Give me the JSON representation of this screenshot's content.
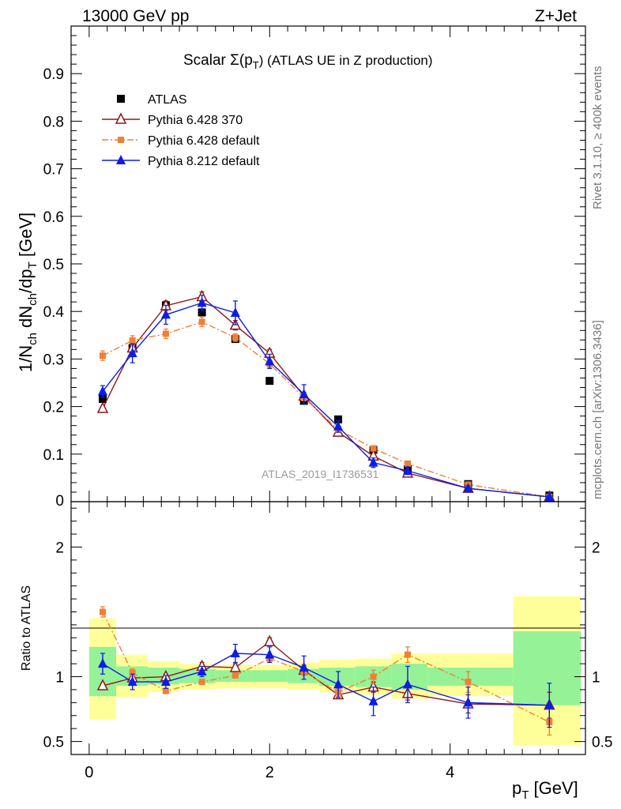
{
  "header": {
    "energy_label": "13000 GeV pp",
    "process_label": "Z+Jet",
    "plot_title_prefix": "Scalar Σ(p",
    "plot_title_sub": "T",
    "plot_title_suffix": ") (ATLAS UE in Z production)"
  },
  "side_labels": {
    "rivet": "Rivet 3.1.10, ≥ 400k events",
    "mcplots": "mcplots.cern.ch [arXiv:1306.3436]"
  },
  "watermark": "ATLAS_2019_I1736531",
  "axis_labels": {
    "y_main": "1/N_ch dN_ch/dp_T [GeV]",
    "y_ratio": "Ratio to ATLAS",
    "x": "p_T [GeV]"
  },
  "colors": {
    "atlas": "#000000",
    "py6_370": "#8b1a1a",
    "py6_default": "#f07f35",
    "py8": "#0a1ee6",
    "band_inner": "#96f296",
    "band_outer": "#ffff99"
  },
  "chart_data": {
    "type": "scatter",
    "title": "Scalar Σ(p_T) (ATLAS UE in Z production)",
    "xlabel": "p_T [GeV]",
    "ylabel": "1/N_ch dN_ch/dp_T [GeV]",
    "xlim": [
      -0.2,
      5.5
    ],
    "ylim": [
      0,
      1.0
    ],
    "main_y_ticks": [
      "0.1",
      "0.2",
      "0.3",
      "0.4",
      "0.5",
      "0.6",
      "0.7",
      "0.8",
      "0.9"
    ],
    "x_ticks": [
      "0",
      "2",
      "4"
    ],
    "ratio_ylim": [
      0.4,
      2.35
    ],
    "ratio_y_ticks": [
      "0.5",
      "1",
      "2"
    ],
    "legend_position": "top-left",
    "bins": [
      [
        0.0,
        0.3
      ],
      [
        0.3,
        0.65
      ],
      [
        0.65,
        1.0
      ],
      [
        1.0,
        1.4
      ],
      [
        1.4,
        1.8
      ],
      [
        1.8,
        2.2
      ],
      [
        2.2,
        2.55
      ],
      [
        2.55,
        2.95
      ],
      [
        2.95,
        3.35
      ],
      [
        3.35,
        3.75
      ],
      [
        3.75,
        4.7
      ],
      [
        4.7,
        5.45
      ]
    ],
    "x": [
      0.15,
      0.48,
      0.85,
      1.25,
      1.62,
      2.0,
      2.38,
      2.76,
      3.15,
      3.53,
      4.2,
      5.1
    ],
    "atlas": {
      "name": "ATLAS",
      "values": [
        0.216,
        0.323,
        0.413,
        0.398,
        0.342,
        0.254,
        0.212,
        0.173,
        0.109,
        0.068,
        0.037,
        0.013
      ],
      "band_inner": [
        [
          0.85,
          1.23
        ],
        [
          0.93,
          1.08
        ],
        [
          0.94,
          1.07
        ],
        [
          0.95,
          1.06
        ],
        [
          0.96,
          1.05
        ],
        [
          0.96,
          1.05
        ],
        [
          0.95,
          1.06
        ],
        [
          0.93,
          1.07
        ],
        [
          0.92,
          1.08
        ],
        [
          0.9,
          1.1
        ],
        [
          0.93,
          1.07
        ],
        [
          0.78,
          1.35
        ]
      ],
      "band_outer": [
        [
          0.67,
          1.45
        ],
        [
          0.84,
          1.17
        ],
        [
          0.88,
          1.12
        ],
        [
          0.9,
          1.1
        ],
        [
          0.91,
          1.09
        ],
        [
          0.91,
          1.09
        ],
        [
          0.9,
          1.11
        ],
        [
          0.88,
          1.13
        ],
        [
          0.86,
          1.14
        ],
        [
          0.83,
          1.18
        ],
        [
          0.85,
          1.18
        ],
        [
          0.47,
          1.62
        ]
      ]
    },
    "series": [
      {
        "name": "Pythia 6.428 370",
        "marker": "open-triangle",
        "line": "solid",
        "values": [
          0.196,
          0.323,
          0.412,
          0.431,
          0.371,
          0.312,
          0.222,
          0.146,
          0.096,
          0.06,
          0.028,
          0.01
        ],
        "errors": [
          0.005,
          0.01,
          0.01,
          0.01,
          0.01,
          0.008,
          0.008,
          0.006,
          0.005,
          0.004,
          0.003,
          0.002
        ],
        "ratio": [
          0.93,
          0.99,
          1.0,
          1.08,
          1.07,
          1.27,
          1.05,
          0.86,
          0.92,
          0.87,
          0.79,
          0.78
        ],
        "ratio_errors": [
          0.02,
          0.02,
          0.02,
          0.03,
          0.03,
          0.03,
          0.04,
          0.03,
          0.04,
          0.05,
          0.07,
          0.1
        ]
      },
      {
        "name": "Pythia 6.428 default",
        "marker": "filled-square",
        "line": "dashdot",
        "values": [
          0.307,
          0.339,
          0.353,
          0.378,
          0.345,
          0.29,
          0.219,
          0.152,
          0.112,
          0.08,
          0.036,
          0.01
        ],
        "errors": [
          0.01,
          0.01,
          0.01,
          0.01,
          0.008,
          0.008,
          0.007,
          0.006,
          0.005,
          0.004,
          0.003,
          0.002
        ],
        "ratio": [
          1.5,
          1.03,
          0.89,
          0.96,
          1.01,
          1.14,
          1.04,
          0.88,
          1.0,
          1.17,
          0.96,
          0.65
        ],
        "ratio_errors": [
          0.04,
          0.03,
          0.02,
          0.02,
          0.02,
          0.03,
          0.03,
          0.03,
          0.05,
          0.06,
          0.08,
          0.1
        ]
      },
      {
        "name": "Pythia 8.212 default",
        "marker": "filled-triangle",
        "line": "solid",
        "values": [
          0.232,
          0.312,
          0.393,
          0.418,
          0.397,
          0.295,
          0.226,
          0.158,
          0.082,
          0.065,
          0.028,
          0.01
        ],
        "errors": [
          0.012,
          0.02,
          0.02,
          0.016,
          0.025,
          0.015,
          0.02,
          0.012,
          0.01,
          0.008,
          0.005,
          0.003
        ],
        "ratio": [
          1.1,
          0.96,
          0.96,
          1.04,
          1.18,
          1.17,
          1.07,
          0.94,
          0.81,
          0.94,
          0.8,
          0.78
        ],
        "ratio_errors": [
          0.08,
          0.06,
          0.05,
          0.04,
          0.07,
          0.06,
          0.09,
          0.1,
          0.11,
          0.14,
          0.12,
          0.17
        ]
      }
    ]
  }
}
